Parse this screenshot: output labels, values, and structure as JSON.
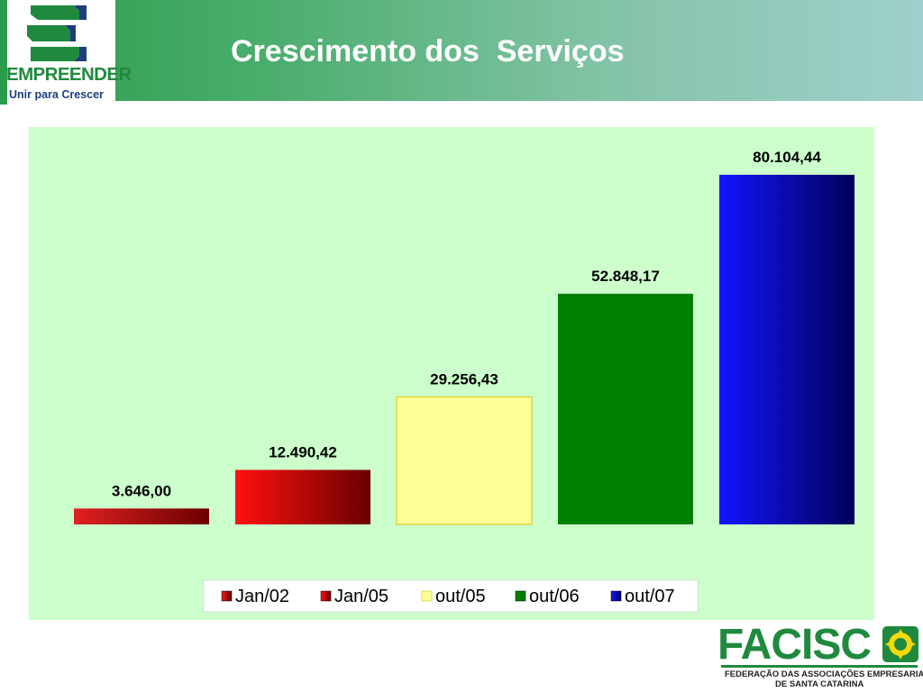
{
  "header": {
    "title": "Crescimento dos  Serviços"
  },
  "logo": {
    "name": "EMPREENDER",
    "slogan": "Unir para Crescer"
  },
  "footer_logo": {
    "name": "FACISC",
    "line1": "FEDERAÇÃO DAS ASSOCIAÇÕES EMPRESARIAIS",
    "line2": "DE SANTA CATARINA"
  },
  "colors": {
    "header_start": "#2a9c4c",
    "header_end": "#9fd0cc",
    "plot_background": "#ccffcc",
    "brand_green": "#1f8a3e"
  },
  "chart_data": {
    "type": "bar",
    "title": "",
    "xlabel": "",
    "ylabel": "",
    "ylim": [
      0,
      80104.44
    ],
    "grid": false,
    "legend_position": "bottom",
    "series": [
      {
        "name": "Jan/02",
        "value": 3646.0,
        "label": "3.646,00",
        "color": "#e02020",
        "color_end": "#6b0000"
      },
      {
        "name": "Jan/05",
        "value": 12490.42,
        "label": "12.490,42",
        "color": "#ff1010",
        "color_end": "#6b0000"
      },
      {
        "name": "out/05",
        "value": 29256.43,
        "label": "29.256,43",
        "color": "#ffff99",
        "color_end": "#ffff99"
      },
      {
        "name": "out/06",
        "value": 52848.17,
        "label": "52.848,17",
        "color": "#008000",
        "color_end": "#008000"
      },
      {
        "name": "out/07",
        "value": 80104.44,
        "label": "80.104,44",
        "color": "#1414ff",
        "color_end": "#00005a"
      }
    ]
  }
}
